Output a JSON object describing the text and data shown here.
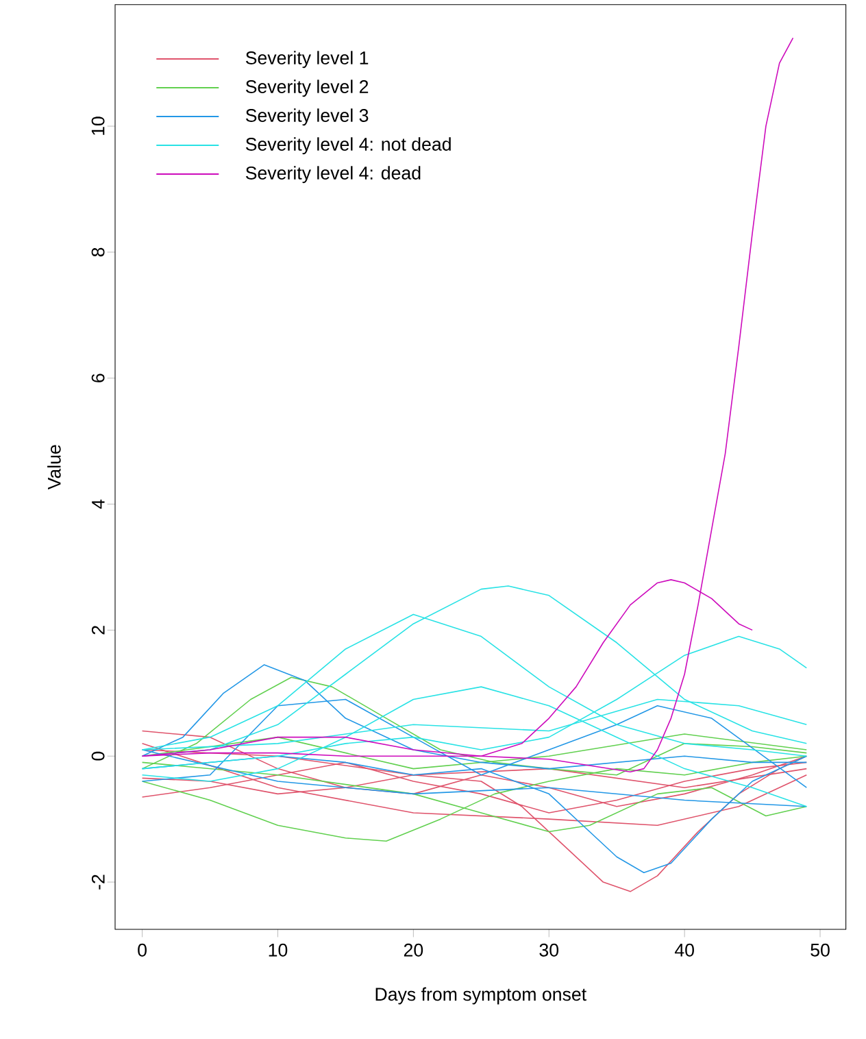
{
  "chart_data": {
    "type": "line",
    "xlabel": "Days from symptom onset",
    "ylabel": "Value",
    "xlim": [
      -2,
      51.9
    ],
    "ylim": [
      -2.75,
      11.93
    ],
    "xticks": [
      0,
      10,
      20,
      30,
      40,
      50
    ],
    "yticks": [
      -2,
      0,
      2,
      4,
      6,
      8,
      10
    ],
    "legend": "top left",
    "grid": false,
    "marker": "none",
    "line_style": "solid",
    "series": [
      {
        "name": "Severity level 1",
        "color": "#df536b",
        "x": [
          0,
          5,
          10,
          15,
          20,
          25,
          28,
          31,
          34,
          36,
          38,
          41,
          44,
          47,
          49
        ],
        "values": [
          -0.35,
          -0.4,
          -0.6,
          -0.5,
          -0.3,
          -0.4,
          -0.8,
          -1.4,
          -2.0,
          -2.15,
          -1.9,
          -1.2,
          -0.6,
          -0.2,
          0
        ]
      },
      {
        "color": "#df536b",
        "x": [
          0,
          5,
          10,
          15,
          20,
          25,
          30,
          35,
          40,
          45,
          49
        ],
        "values": [
          0.4,
          0.3,
          -0.2,
          -0.5,
          -0.6,
          -0.3,
          -0.5,
          -0.8,
          -0.6,
          -0.3,
          0.0
        ]
      },
      {
        "color": "#df536b",
        "x": [
          0,
          5,
          10,
          15,
          20,
          25,
          30,
          35,
          40,
          45,
          49
        ],
        "values": [
          -0.65,
          -0.5,
          -0.3,
          -0.1,
          -0.4,
          -0.6,
          -0.9,
          -0.7,
          -0.4,
          -0.2,
          -0.1
        ]
      },
      {
        "color": "#df536b",
        "x": [
          0,
          10,
          20,
          30,
          40,
          49
        ],
        "values": [
          0.1,
          0.0,
          -0.3,
          -0.2,
          -0.5,
          -0.2
        ]
      },
      {
        "color": "#df536b",
        "x": [
          0,
          10,
          20,
          30,
          38,
          44,
          49
        ],
        "values": [
          0.2,
          -0.5,
          -0.9,
          -1.0,
          -1.1,
          -0.8,
          -0.3
        ]
      },
      {
        "name": "Severity level 2",
        "color": "#61d04f",
        "x": [
          0,
          4,
          8,
          11,
          14,
          18,
          22,
          26,
          30,
          35,
          40,
          45,
          49
        ],
        "values": [
          -0.2,
          0.2,
          0.9,
          1.25,
          1.1,
          0.6,
          0.1,
          -0.1,
          -0.2,
          -0.3,
          0.2,
          0.15,
          0.05
        ]
      },
      {
        "color": "#61d04f",
        "x": [
          0,
          5,
          10,
          15,
          18,
          22,
          26,
          30,
          35,
          40,
          45,
          49
        ],
        "values": [
          -0.4,
          -0.7,
          -1.1,
          -1.3,
          -1.35,
          -1.0,
          -0.6,
          -0.4,
          -0.2,
          -0.3,
          -0.1,
          0
        ]
      },
      {
        "color": "#61d04f",
        "x": [
          0,
          10,
          20,
          25,
          30,
          33,
          38,
          42,
          46,
          49
        ],
        "values": [
          -0.1,
          -0.3,
          -0.6,
          -0.9,
          -1.2,
          -1.1,
          -0.6,
          -0.5,
          -0.95,
          -0.8
        ]
      },
      {
        "color": "#61d04f",
        "x": [
          0,
          10,
          20,
          30,
          40,
          49
        ],
        "values": [
          0.0,
          0.3,
          -0.2,
          0.0,
          0.35,
          0.1
        ]
      },
      {
        "name": "Severity level 3",
        "color": "#2297e6",
        "x": [
          0,
          3,
          6,
          9,
          12,
          15,
          20,
          25,
          30,
          35,
          40,
          45,
          49
        ],
        "values": [
          0.0,
          0.3,
          1.0,
          1.45,
          1.2,
          0.6,
          0.1,
          -0.1,
          -0.2,
          -0.1,
          0,
          -0.1,
          -0.1
        ]
      },
      {
        "color": "#2297e6",
        "x": [
          0,
          5,
          10,
          15,
          20,
          25,
          30,
          33,
          35,
          37,
          39,
          42,
          45,
          49
        ],
        "values": [
          -0.2,
          -0.1,
          0,
          -0.1,
          -0.3,
          -0.2,
          -0.6,
          -1.2,
          -1.6,
          -1.85,
          -1.7,
          -1.0,
          -0.4,
          0
        ]
      },
      {
        "color": "#2297e6",
        "x": [
          0,
          5,
          10,
          15,
          20,
          25,
          30,
          35,
          38,
          42,
          49
        ],
        "values": [
          -0.4,
          -0.3,
          0.8,
          0.9,
          0.3,
          -0.3,
          0.1,
          0.5,
          0.8,
          0.6,
          -0.5
        ]
      },
      {
        "color": "#2297e6",
        "x": [
          0,
          10,
          20,
          30,
          40,
          49
        ],
        "values": [
          0.1,
          -0.4,
          -0.6,
          -0.5,
          -0.7,
          -0.8
        ]
      },
      {
        "name": "Severity level 4: not dead",
        "color": "#28e2e5",
        "x": [
          0,
          5,
          10,
          15,
          20,
          25,
          27,
          30,
          35,
          40,
          45,
          49
        ],
        "values": [
          0,
          0.1,
          0.5,
          1.3,
          2.1,
          2.65,
          2.7,
          2.55,
          1.8,
          0.9,
          0.4,
          0.2
        ]
      },
      {
        "color": "#28e2e5",
        "x": [
          0,
          5,
          10,
          15,
          20,
          25,
          30,
          35,
          40,
          45,
          49
        ],
        "values": [
          0.1,
          0.3,
          0.8,
          1.7,
          2.25,
          1.9,
          1.1,
          0.5,
          0.2,
          0.1,
          0.0
        ]
      },
      {
        "color": "#28e2e5",
        "x": [
          0,
          5,
          10,
          15,
          20,
          25,
          30,
          35,
          40,
          44,
          47,
          49
        ],
        "values": [
          -0.2,
          -0.1,
          0,
          0.2,
          0.3,
          0.1,
          0.3,
          0.9,
          1.6,
          1.9,
          1.7,
          1.4
        ]
      },
      {
        "color": "#28e2e5",
        "x": [
          0,
          5,
          10,
          15,
          20,
          25,
          30,
          35,
          40,
          45,
          49
        ],
        "values": [
          -0.3,
          -0.4,
          -0.2,
          0.3,
          0.9,
          1.1,
          0.8,
          0.3,
          -0.2,
          -0.5,
          -0.8
        ]
      },
      {
        "color": "#28e2e5",
        "x": [
          0,
          10,
          20,
          30,
          38,
          44,
          49
        ],
        "values": [
          0.1,
          0.2,
          0.5,
          0.4,
          0.9,
          0.8,
          0.5
        ]
      },
      {
        "name": "Severity level 4: dead",
        "color": "#cd0bbc",
        "x": [
          0,
          5,
          10,
          15,
          20,
          25,
          30,
          33,
          36,
          37,
          38,
          39,
          40,
          41,
          42,
          43,
          44,
          45,
          46,
          47,
          48
        ],
        "values": [
          0.0,
          0.05,
          0.05,
          0.0,
          0.0,
          0,
          -0.05,
          -0.15,
          -0.25,
          -0.2,
          0.1,
          0.6,
          1.3,
          2.4,
          3.6,
          4.8,
          6.5,
          8.3,
          10.0,
          11.0,
          11.4
        ]
      },
      {
        "color": "#cd0bbc",
        "x": [
          0,
          5,
          10,
          15,
          20,
          25,
          28,
          30,
          32,
          34,
          36,
          38,
          39,
          40,
          42,
          44,
          45
        ],
        "values": [
          0.0,
          0.1,
          0.3,
          0.3,
          0.1,
          0.0,
          0.2,
          0.6,
          1.1,
          1.8,
          2.4,
          2.75,
          2.8,
          2.75,
          2.5,
          2.1,
          2.0
        ]
      }
    ]
  }
}
